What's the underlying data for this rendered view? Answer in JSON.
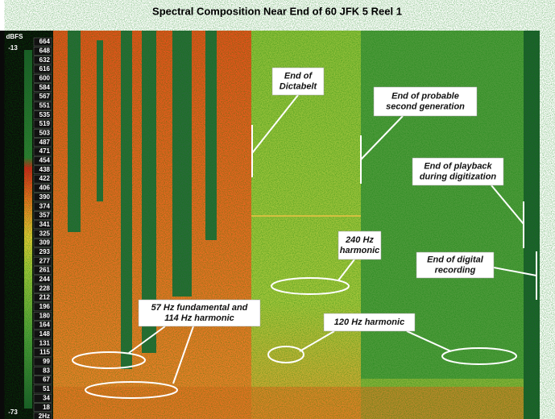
{
  "title": "Spectral Composition Near End of 60 JFK 5 Reel 1",
  "scale": {
    "unit": "dBFS",
    "top": "-13",
    "bottom": "-73"
  },
  "frequency_labels": [
    "664",
    "648",
    "632",
    "616",
    "600",
    "584",
    "567",
    "551",
    "535",
    "519",
    "503",
    "487",
    "471",
    "454",
    "438",
    "422",
    "406",
    "390",
    "374",
    "357",
    "341",
    "325",
    "309",
    "293",
    "277",
    "261",
    "244",
    "228",
    "212",
    "196",
    "180",
    "164",
    "148",
    "131",
    "115",
    "99",
    "83",
    "67",
    "51",
    "34",
    "18",
    "2Hz"
  ],
  "annotations": [
    {
      "lines": [
        "End of",
        "Dictabelt"
      ]
    },
    {
      "lines": [
        "End of probable",
        "second generation"
      ]
    },
    {
      "lines": [
        "End of playback",
        "during digitization"
      ]
    },
    {
      "lines": [
        "End of digital",
        "recording"
      ]
    },
    {
      "lines": [
        "240 Hz",
        "harmonic"
      ]
    },
    {
      "lines": [
        "57 Hz fundamental and",
        "114 Hz harmonic"
      ]
    },
    {
      "lines": [
        "120 Hz harmonic"
      ]
    }
  ]
}
